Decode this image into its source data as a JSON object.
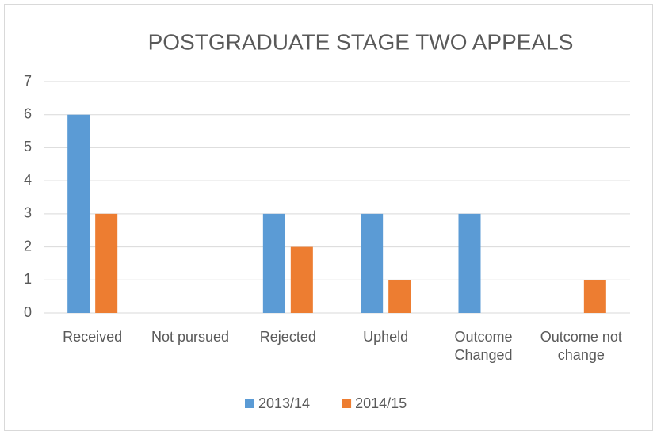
{
  "chart_data": {
    "type": "bar",
    "title": "POSTGRADUATE STAGE TWO APPEALS",
    "categories": [
      "Received",
      "Not pursued",
      "Rejected",
      "Upheld",
      "Outcome Changed",
      "Outcome not change"
    ],
    "series": [
      {
        "name": "2013/14",
        "color": "#5b9bd5",
        "values": [
          6,
          0,
          3,
          3,
          3,
          0
        ]
      },
      {
        "name": "2014/15",
        "color": "#ed7d31",
        "values": [
          3,
          0,
          2,
          1,
          0,
          1
        ]
      }
    ],
    "ylim": [
      0,
      7
    ],
    "yticks": [
      0,
      1,
      2,
      3,
      4,
      5,
      6,
      7
    ],
    "grid": true,
    "legend": "bottom"
  }
}
